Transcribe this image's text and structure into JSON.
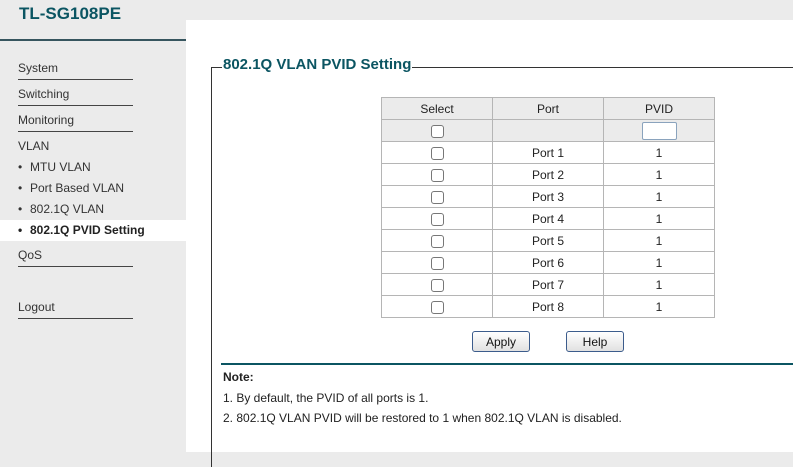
{
  "header": {
    "logo": "TL-SG108PE"
  },
  "sidebar": {
    "items": [
      {
        "label": "System"
      },
      {
        "label": "Switching"
      },
      {
        "label": "Monitoring"
      },
      {
        "label": "VLAN"
      }
    ],
    "vlan_sub": [
      {
        "label": "MTU VLAN"
      },
      {
        "label": "Port Based VLAN"
      },
      {
        "label": "802.1Q VLAN"
      },
      {
        "label": "802.1Q PVID Setting",
        "selected": true
      }
    ],
    "qos": "QoS",
    "logout": "Logout",
    "bullet": "•"
  },
  "main": {
    "title": "802.1Q VLAN PVID Setting",
    "table": {
      "headers": [
        "Select",
        "Port",
        "PVID"
      ],
      "rows": [
        {
          "port": "Port 1",
          "pvid": "1"
        },
        {
          "port": "Port 2",
          "pvid": "1"
        },
        {
          "port": "Port 3",
          "pvid": "1"
        },
        {
          "port": "Port 4",
          "pvid": "1"
        },
        {
          "port": "Port 5",
          "pvid": "1"
        },
        {
          "port": "Port 6",
          "pvid": "1"
        },
        {
          "port": "Port 7",
          "pvid": "1"
        },
        {
          "port": "Port 8",
          "pvid": "1"
        }
      ],
      "pvid_input": ""
    },
    "apply": "Apply",
    "help": "Help",
    "note_title": "Note:",
    "notes": [
      "1. By default, the PVID of all ports is 1.",
      "2. 802.1Q VLAN PVID will be restored to 1 when 802.1Q VLAN is disabled."
    ]
  },
  "colors": {
    "accent": "#0b5562"
  }
}
